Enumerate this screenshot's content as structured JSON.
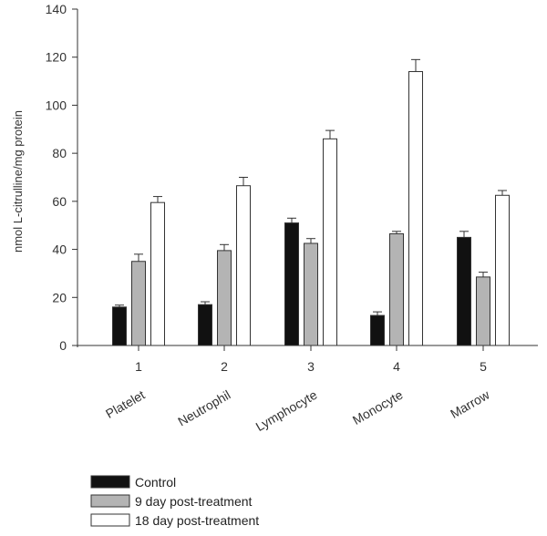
{
  "chart_data": {
    "type": "bar",
    "title": "",
    "ylabel": "nmol L-citrulline/mg protein",
    "xlabel": "",
    "ylim": [
      0,
      140
    ],
    "yticks": [
      0,
      20,
      40,
      60,
      80,
      100,
      120,
      140
    ],
    "categories": [
      "1",
      "2",
      "3",
      "4",
      "5"
    ],
    "category_labels": [
      "Platelet",
      "Neutrophil",
      "Lymphocyte",
      "Monocyte",
      "Marrow"
    ],
    "series": [
      {
        "name": "Control",
        "color": "#111111",
        "values": [
          16,
          17,
          51,
          12.5,
          45
        ],
        "errors": [
          0.8,
          1.2,
          2.0,
          1.5,
          2.5
        ]
      },
      {
        "name": "9 day post-treatment",
        "color": "#b4b4b4",
        "values": [
          35,
          39.5,
          42.5,
          46.5,
          28.5
        ],
        "errors": [
          3.0,
          2.5,
          2.0,
          1.0,
          2.0
        ]
      },
      {
        "name": "18 day post-treatment",
        "color": "#ffffff",
        "values": [
          59.5,
          66.5,
          86,
          114,
          62.5
        ],
        "errors": [
          2.5,
          3.5,
          3.5,
          5.0,
          2.0
        ]
      }
    ],
    "grid": false,
    "legend_position": "bottom-left"
  }
}
